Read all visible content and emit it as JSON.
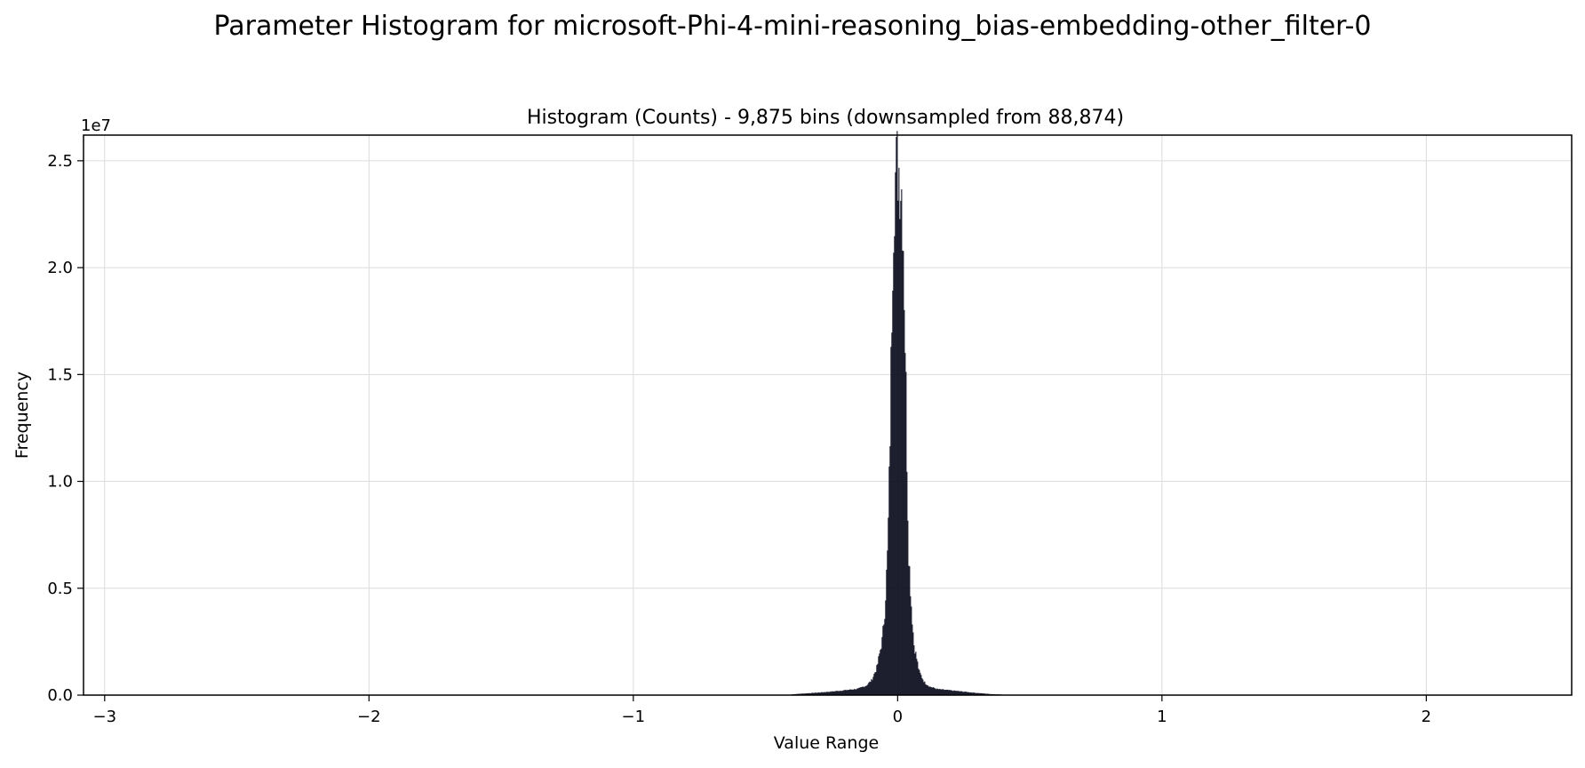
{
  "chart_data": {
    "type": "bar",
    "suptitle": "Parameter Histogram for microsoft-Phi-4-mini-reasoning_bias-embedding-other_filter-0",
    "title": "Histogram (Counts) - 9,875 bins (downsampled from 88,874)",
    "xlabel": "Value Range",
    "ylabel": "Frequency",
    "y_offset_label": "1e7",
    "xlim": [
      -3.08,
      2.55
    ],
    "ylim": [
      0,
      26200000
    ],
    "x_ticks": [
      -3,
      -2,
      -1,
      0,
      1,
      2
    ],
    "x_tick_labels": [
      "−3",
      "−2",
      "−1",
      "0",
      "1",
      "2"
    ],
    "y_ticks": [
      0,
      5000000,
      10000000,
      15000000,
      20000000,
      25000000
    ],
    "y_tick_labels": [
      "0.0",
      "0.5",
      "1.0",
      "1.5",
      "2.0",
      "2.5"
    ],
    "grid": true,
    "bar_color": "#0b0c1e",
    "bin_edges_range": [
      -0.4,
      0.4
    ],
    "x": [
      -0.4,
      -0.35,
      -0.3,
      -0.25,
      -0.2,
      -0.15,
      -0.12,
      -0.1,
      -0.08,
      -0.06,
      -0.05,
      -0.04,
      -0.035,
      -0.03,
      -0.025,
      -0.02,
      -0.015,
      -0.01,
      -0.005,
      0.0,
      0.005,
      0.01,
      0.015,
      0.02,
      0.025,
      0.03,
      0.035,
      0.04,
      0.05,
      0.06,
      0.08,
      0.1,
      0.12,
      0.15,
      0.2,
      0.25,
      0.3,
      0.35,
      0.4
    ],
    "values": [
      40000,
      80000,
      120000,
      170000,
      230000,
      300000,
      450000,
      700000,
      1300000,
      2600000,
      4000000,
      6600000,
      9000000,
      12500000,
      17000000,
      21000000,
      23500000,
      24300000,
      24600000,
      24900000,
      24600000,
      24200000,
      23500000,
      21500000,
      18000000,
      14500000,
      10000000,
      6800000,
      4300000,
      2400000,
      1100000,
      600000,
      400000,
      280000,
      220000,
      160000,
      100000,
      50000,
      20000
    ]
  }
}
